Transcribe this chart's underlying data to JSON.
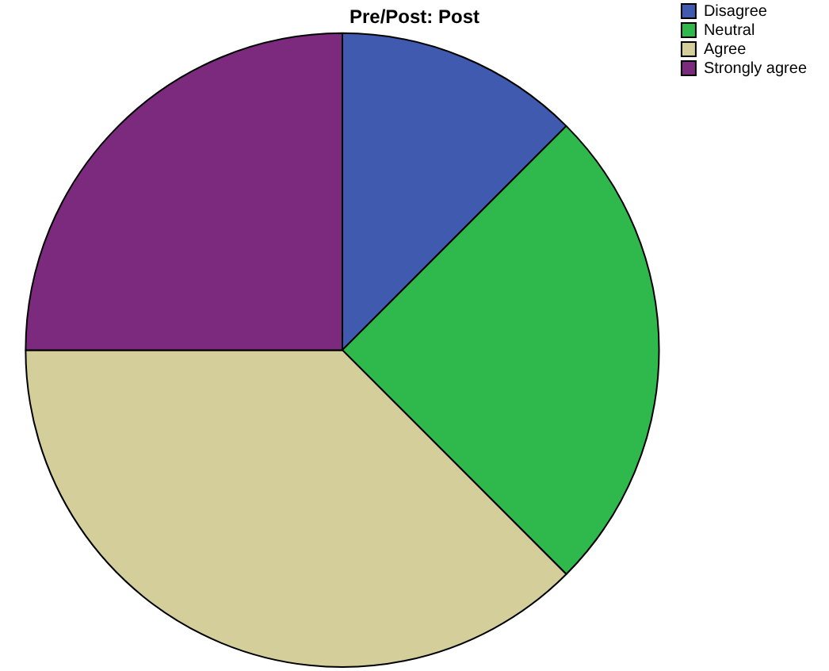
{
  "chart_data": {
    "type": "pie",
    "title": "Pre/Post: Post",
    "categories": [
      "Disagree",
      "Neutral",
      "Agree",
      "Strongly agree"
    ],
    "values": [
      12.5,
      25,
      37.5,
      25
    ],
    "colors": [
      "#3f5aae",
      "#2fb84b",
      "#d4cf9a",
      "#7b2a7e"
    ],
    "legend": "top right"
  }
}
